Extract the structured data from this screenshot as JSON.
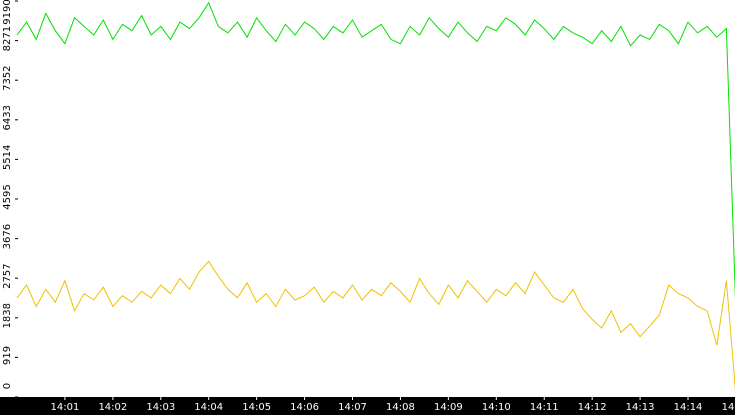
{
  "chart_data": {
    "type": "line",
    "x": [
      0,
      0.2,
      0.4,
      0.6,
      0.8,
      1,
      1.2,
      1.4,
      1.6,
      1.8,
      2,
      2.2,
      2.4,
      2.6,
      2.8,
      3,
      3.2,
      3.4,
      3.6,
      3.8,
      4,
      4.2,
      4.4,
      4.6,
      4.8,
      5,
      5.2,
      5.4,
      5.6,
      5.8,
      6,
      6.2,
      6.4,
      6.6,
      6.8,
      7,
      7.2,
      7.4,
      7.6,
      7.8,
      8,
      8.2,
      8.4,
      8.6,
      8.8,
      9,
      9.2,
      9.4,
      9.6,
      9.8,
      10,
      10.2,
      10.4,
      10.6,
      10.8,
      11,
      11.2,
      11.4,
      11.6,
      11.8,
      12,
      12.2,
      12.4,
      12.6,
      12.8,
      13,
      13.2,
      13.4,
      13.6,
      13.8,
      14,
      14.2,
      14.4,
      14.6,
      14.8,
      15
    ],
    "series": [
      {
        "color": "#00e000",
        "values": [
          8400,
          8700,
          8300,
          8900,
          8500,
          8200,
          8800,
          8600,
          8400,
          8750,
          8300,
          8650,
          8500,
          8850,
          8400,
          8600,
          8300,
          8700,
          8550,
          8800,
          9150,
          8600,
          8450,
          8700,
          8350,
          8800,
          8500,
          8250,
          8650,
          8400,
          8700,
          8550,
          8300,
          8600,
          8450,
          8750,
          8350,
          8500,
          8650,
          8300,
          8200,
          8600,
          8400,
          8800,
          8550,
          8350,
          8700,
          8450,
          8250,
          8600,
          8500,
          8800,
          8650,
          8400,
          8750,
          8550,
          8300,
          8600,
          8450,
          8350,
          8200,
          8500,
          8250,
          8600,
          8150,
          8400,
          8300,
          8650,
          8500,
          8200,
          8700,
          8450,
          8600,
          8350,
          8550,
          1900
        ]
      },
      {
        "color": "#f0c000",
        "values": [
          2300,
          2600,
          2100,
          2500,
          2200,
          2700,
          2000,
          2400,
          2250,
          2550,
          2100,
          2350,
          2200,
          2450,
          2300,
          2600,
          2400,
          2750,
          2500,
          2900,
          3150,
          2800,
          2500,
          2300,
          2650,
          2200,
          2400,
          2100,
          2500,
          2250,
          2350,
          2550,
          2200,
          2450,
          2300,
          2600,
          2250,
          2500,
          2350,
          2650,
          2450,
          2200,
          2750,
          2400,
          2150,
          2600,
          2300,
          2700,
          2450,
          2200,
          2500,
          2350,
          2650,
          2400,
          2900,
          2600,
          2300,
          2200,
          2500,
          2050,
          1800,
          1600,
          2000,
          1500,
          1700,
          1400,
          1650,
          1900,
          2600,
          2400,
          2300,
          2100,
          2000,
          1200,
          2700,
          0
        ]
      }
    ],
    "xlim": [
      0,
      15
    ],
    "xticks": [
      {
        "value": 1,
        "label": "14:01"
      },
      {
        "value": 2,
        "label": "14:02"
      },
      {
        "value": 3,
        "label": "14:03"
      },
      {
        "value": 4,
        "label": "14:04"
      },
      {
        "value": 5,
        "label": "14:05"
      },
      {
        "value": 6,
        "label": "14:06"
      },
      {
        "value": 7,
        "label": "14:07"
      },
      {
        "value": 8,
        "label": "14:08"
      },
      {
        "value": 9,
        "label": "14:09"
      },
      {
        "value": 10,
        "label": "14:10"
      },
      {
        "value": 11,
        "label": "14:11"
      },
      {
        "value": 12,
        "label": "14:12"
      },
      {
        "value": 13,
        "label": "14:13"
      },
      {
        "value": 14,
        "label": "14:14"
      },
      {
        "value": 15,
        "label": "14"
      }
    ],
    "ylim": [
      0,
      9190
    ],
    "yticks": [
      0,
      919,
      1838,
      2757,
      3676,
      4595,
      5514,
      6433,
      7352,
      8271,
      9190
    ]
  }
}
